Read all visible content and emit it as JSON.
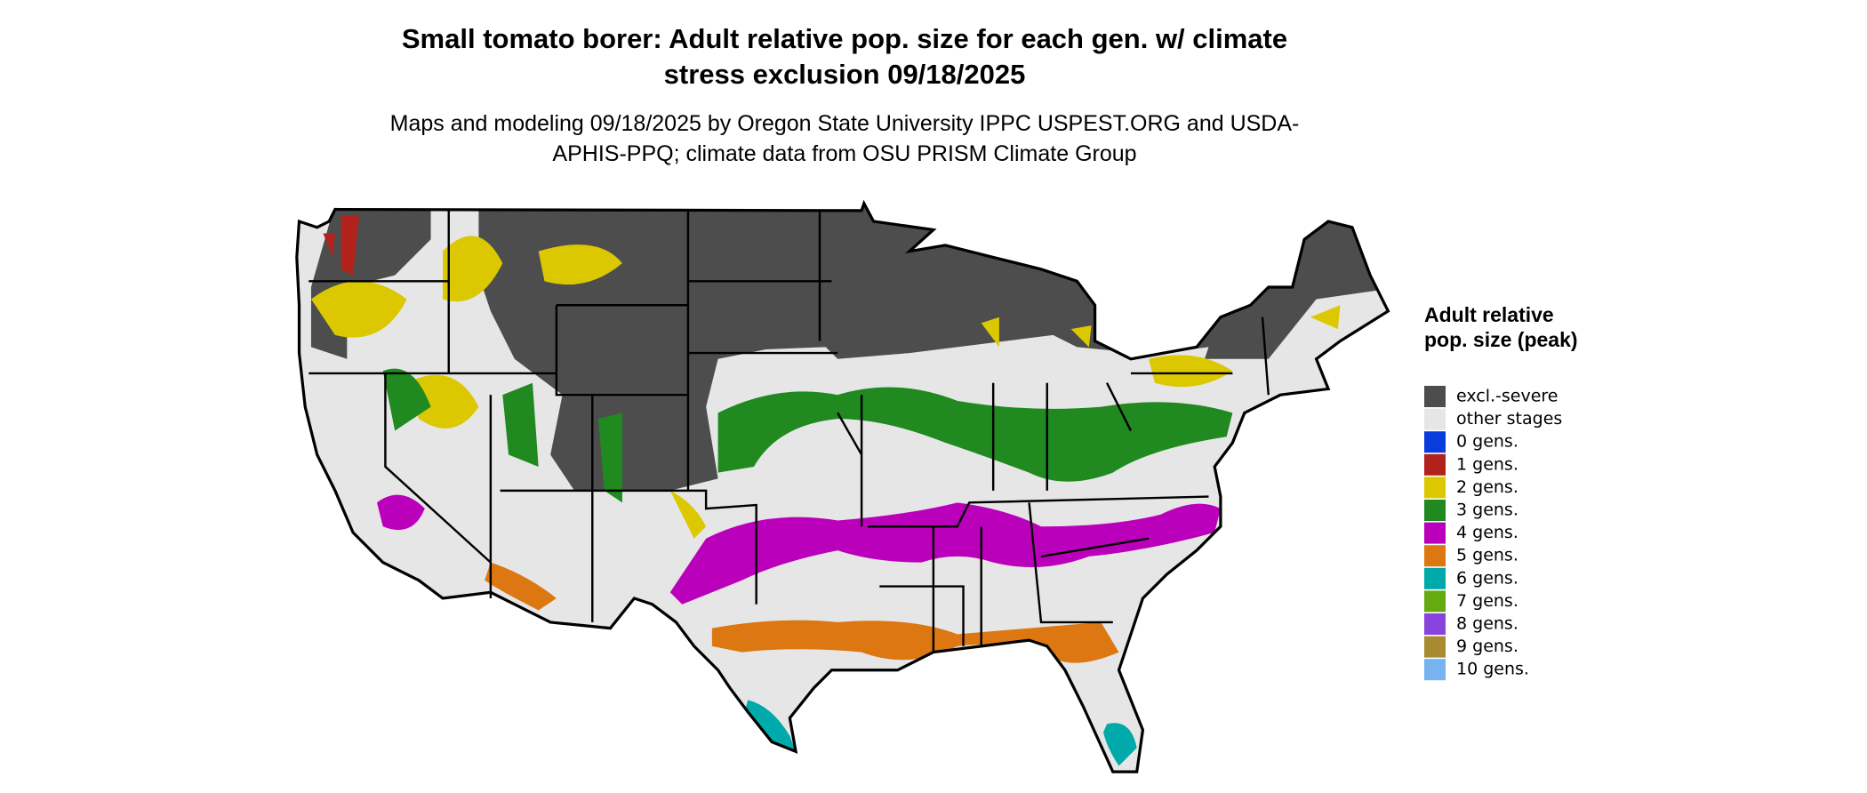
{
  "title": "Small tomato borer: Adult relative pop. size for each gen. w/ climate stress exclusion 09/18/2025",
  "subtitle": "Maps and modeling 09/18/2025 by Oregon State University IPPC USPEST.ORG and USDA-APHIS-PPQ; climate data from OSU PRISM Climate Group",
  "legend": {
    "title": "Adult relative pop. size (peak)",
    "items": [
      {
        "label": "excl.-severe",
        "color": "#4d4d4d"
      },
      {
        "label": "other stages",
        "color": "#e6e6e6"
      },
      {
        "label": "0 gens.",
        "color": "#0a3bdc"
      },
      {
        "label": "1 gens.",
        "color": "#b2221c"
      },
      {
        "label": "2 gens.",
        "color": "#dcc800"
      },
      {
        "label": "3 gens.",
        "color": "#208a20"
      },
      {
        "label": "4 gens.",
        "color": "#bb00bb"
      },
      {
        "label": "5 gens.",
        "color": "#dd7711"
      },
      {
        "label": "6 gens.",
        "color": "#00aaaa"
      },
      {
        "label": "7 gens.",
        "color": "#66aa11"
      },
      {
        "label": "8 gens.",
        "color": "#8844dd"
      },
      {
        "label": "9 gens.",
        "color": "#a88a30"
      },
      {
        "label": "10 gens.",
        "color": "#77b3f0"
      }
    ]
  }
}
